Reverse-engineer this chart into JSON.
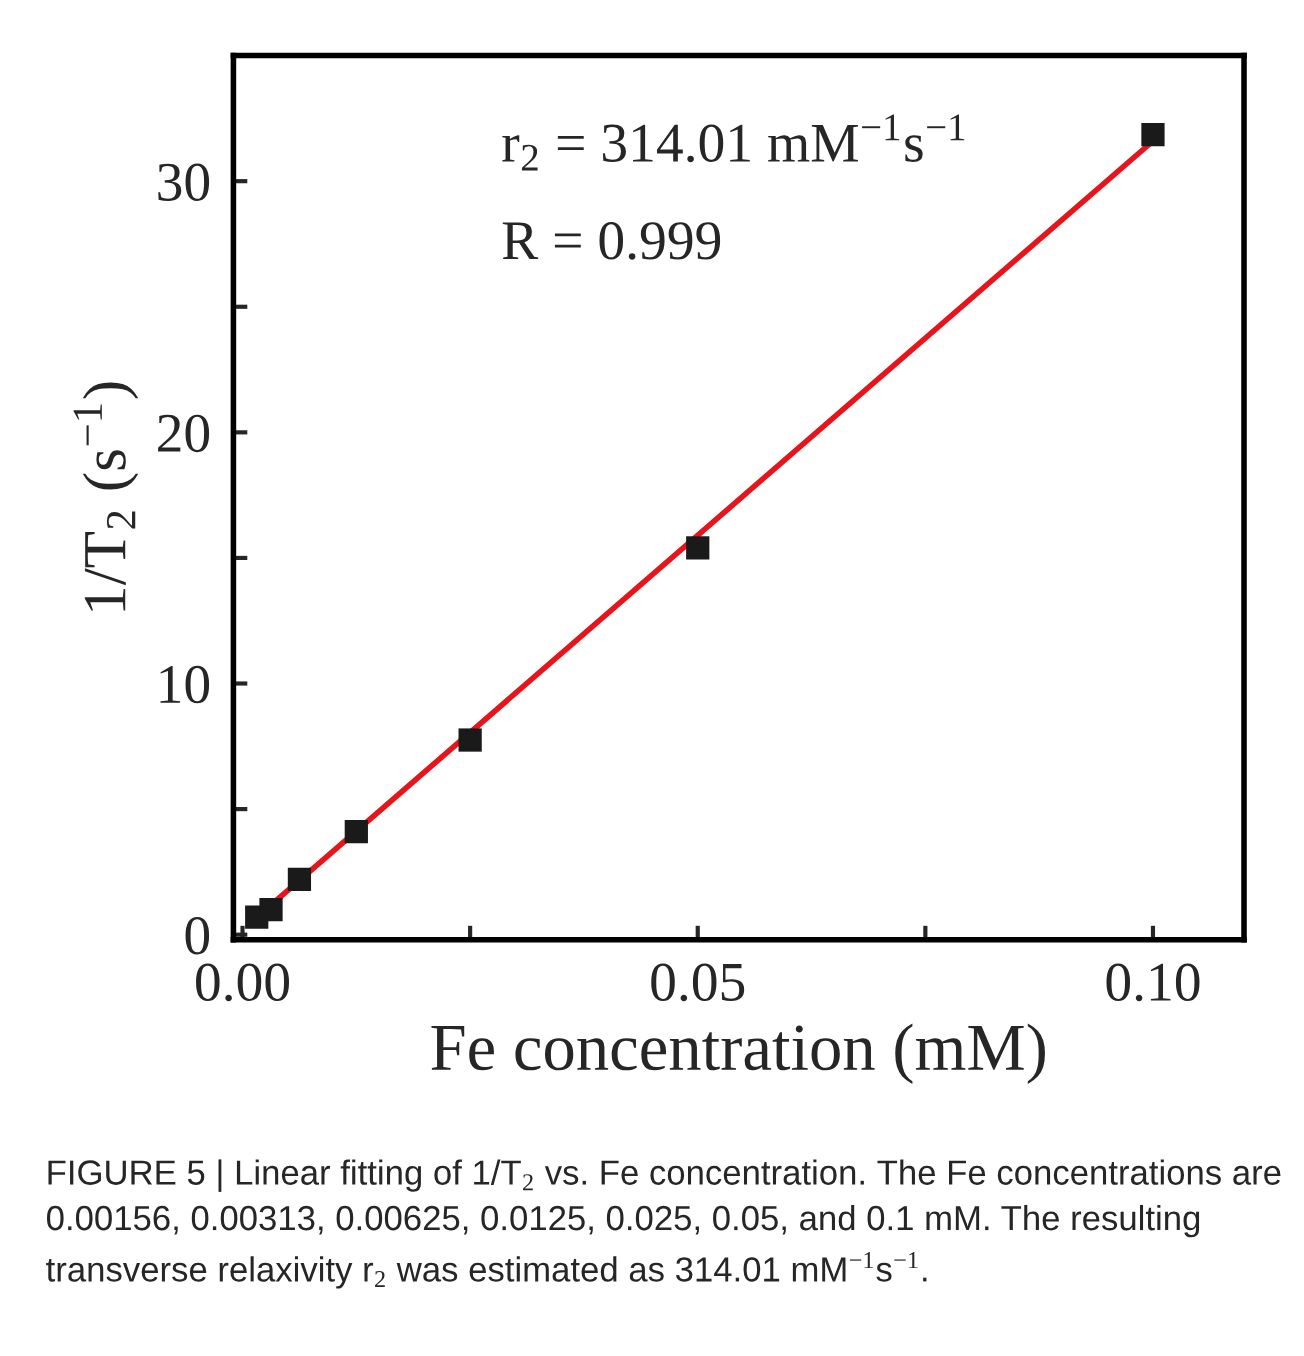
{
  "chart_data": {
    "type": "scatter",
    "xlabel": "Fe concentration (mM)",
    "ylabel": "1/T$_{2}$ (s$^{−1}$)",
    "xlim": [
      -0.001,
      0.11
    ],
    "ylim": [
      -0.2,
      35
    ],
    "xticks": [
      {
        "value": 0,
        "label": "0.00"
      },
      {
        "value": 0.025,
        "label": null
      },
      {
        "value": 0.05,
        "label": "0.05"
      },
      {
        "value": 0.075,
        "label": null
      },
      {
        "value": 0.1,
        "label": "0.10"
      }
    ],
    "yticks": [
      0,
      {
        "value": 5,
        "label": null
      },
      10,
      {
        "value": 15,
        "label": null
      },
      20,
      {
        "value": 25,
        "label": null
      },
      30
    ],
    "grid": false,
    "legend": false,
    "series": [
      {
        "marker": "square",
        "color": "#1a1a1a",
        "x": [
          0.00156,
          0.00313,
          0.00625,
          0.0125,
          0.025,
          0.05,
          0.1
        ],
        "values": [
          0.7,
          1.0,
          2.2,
          4.1,
          7.75,
          15.4,
          31.85
        ]
      },
      {
        "type": "line",
        "marker": "none",
        "line_style": "solid",
        "color": "#e8141b",
        "x": [
          0.00156,
          0.1
        ],
        "values": [
          0.69,
          31.6
        ]
      }
    ],
    "annotations": [
      "r$_{2}$ = 314.01 mM$^{−1}$s$^{−1}$",
      "R = 0.999",
      "FIGURE 5 | Linear fitting of 1/T$_{2}$ vs. Fe concentration. The Fe concentrations are 0.00156, 0.00313, 0.00625, 0.0125, 0.025, 0.05, and 0.1 mM. The resulting transverse relaxivity r$_{2}$ was estimated as 314.01 mM$^{−1}$s$^{−1}$."
    ]
  }
}
